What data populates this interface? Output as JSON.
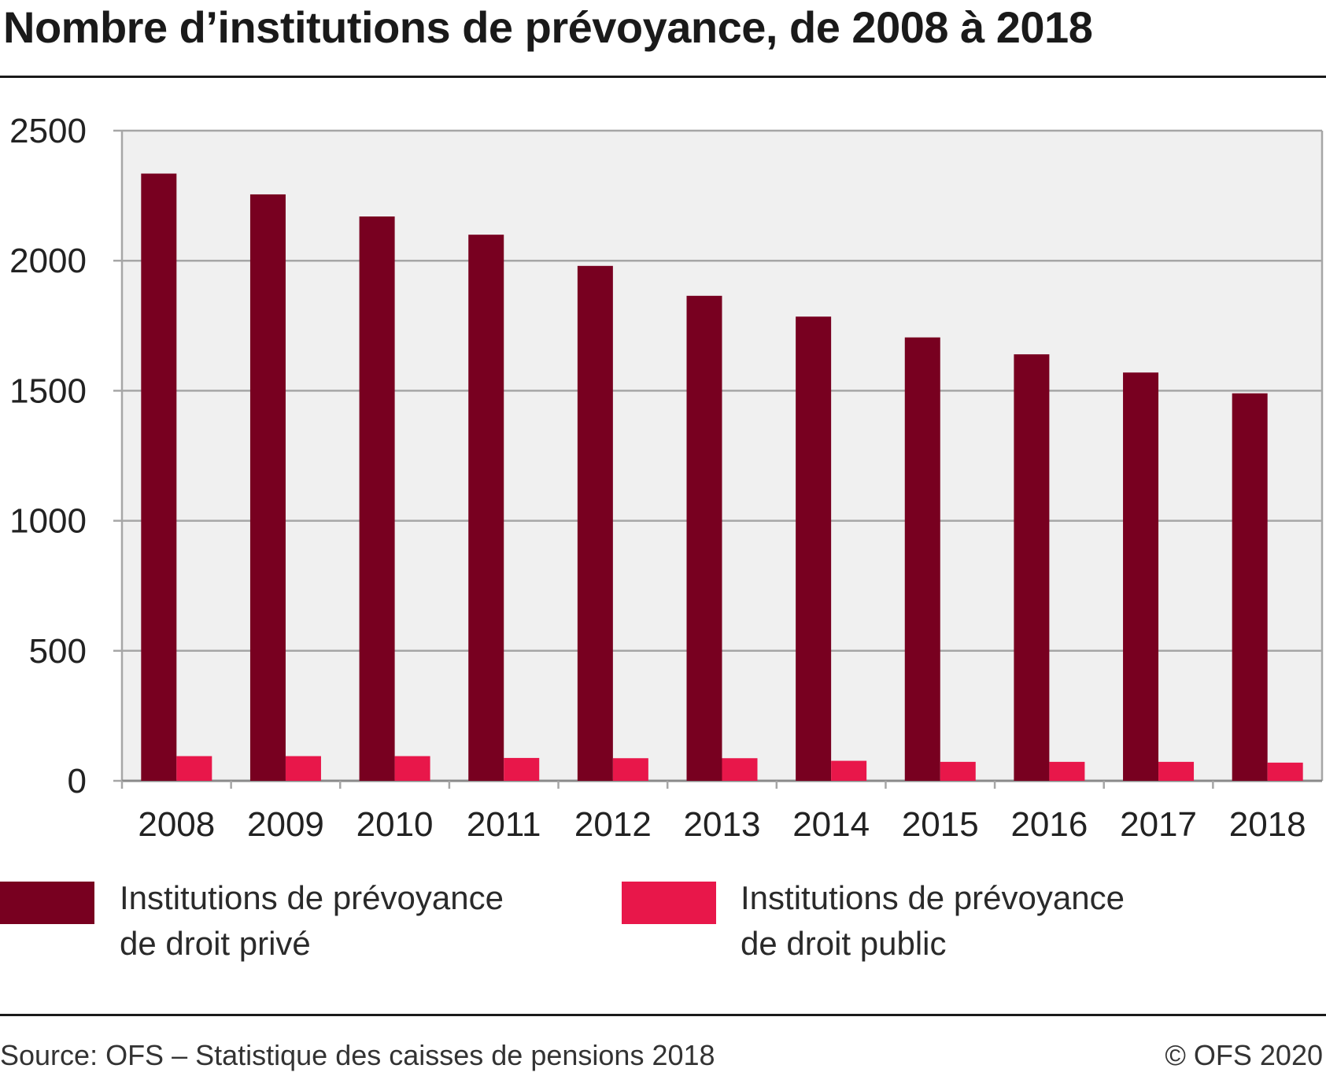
{
  "title": "Nombre d’institutions de prévoyance, de 2008 à 2018",
  "source": "Source: OFS – Statistique des caisses de pensions 2018",
  "copyright": "© OFS 2020",
  "colors": {
    "private": "#780020",
    "public": "#e8174a",
    "plot_bg": "#f0f0f0",
    "grid": "#a6a6a6"
  },
  "chart_data": {
    "type": "bar",
    "title": "Nombre d’institutions de prévoyance, de 2008 à 2018",
    "categories": [
      "2008",
      "2009",
      "2010",
      "2011",
      "2012",
      "2013",
      "2014",
      "2015",
      "2016",
      "2017",
      "2018"
    ],
    "series": [
      {
        "name": "Institutions de prévoyance de droit privé",
        "name_lines": [
          "Institutions de prévoyance",
          "de droit privé"
        ],
        "values": [
          2335,
          2255,
          2170,
          2100,
          1980,
          1865,
          1785,
          1705,
          1640,
          1570,
          1490
        ]
      },
      {
        "name": "Institutions de prévoyance de droit public",
        "name_lines": [
          "Institutions de prévoyance",
          "de droit public"
        ],
        "values": [
          95,
          95,
          95,
          88,
          87,
          87,
          77,
          73,
          73,
          73,
          70
        ]
      }
    ],
    "ylim": [
      0,
      2500
    ],
    "yticks": [
      "0",
      "500",
      "1000",
      "1500",
      "2000",
      "2500"
    ],
    "grid": true,
    "legend": "bottom",
    "xlabel": "",
    "ylabel": ""
  }
}
